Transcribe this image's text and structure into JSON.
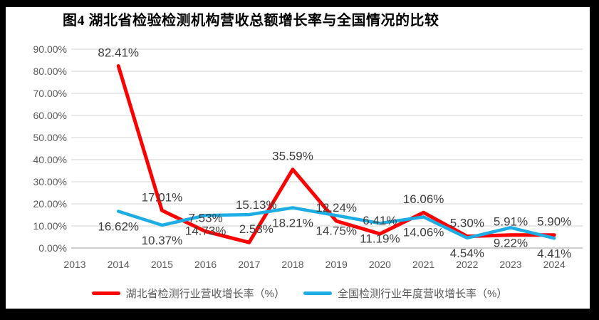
{
  "title": "图4 湖北省检验检测机构营收总额增长率与全国情况的比较",
  "chart_data": {
    "type": "line",
    "title": "图4 湖北省检验检测机构营收总额增长率与全国情况的比较",
    "categories": [
      "2013",
      "2014",
      "2015",
      "2016",
      "2017",
      "2018",
      "2019",
      "2020",
      "2021",
      "2022",
      "2023",
      "2024"
    ],
    "series": [
      {
        "name": "湖北省检测行业营收增长率（%）",
        "color": "#FF0000",
        "values": [
          null,
          82.41,
          17.01,
          7.53,
          2.53,
          35.59,
          12.24,
          6.41,
          16.06,
          5.3,
          5.91,
          5.9
        ],
        "labels": [
          "",
          "82.41%",
          "17.01%",
          "7.53%",
          "2.53%",
          "35.59%",
          "12.24%",
          "6.41%",
          "16.06%",
          "5.30%",
          "5.91%",
          "5.90%"
        ],
        "label_position": "above"
      },
      {
        "name": "全国检测行业年度营收增长率（%）",
        "color": "#1CADE4",
        "values": [
          null,
          16.62,
          10.37,
          14.73,
          15.13,
          18.21,
          14.75,
          11.19,
          14.06,
          4.54,
          9.22,
          4.41
        ],
        "labels": [
          "",
          "16.62%",
          "10.37%",
          "14.73%",
          "15.13%",
          "18.21%",
          "14.75%",
          "11.19%",
          "14.06%",
          "4.54%",
          "9.22%",
          "4.41%"
        ],
        "label_position": "below",
        "label_position_overrides": {
          "4": "above"
        }
      }
    ],
    "ylim": [
      0,
      90
    ],
    "ytick_step": 10,
    "ytick_labels": [
      "0.00%",
      "10.00%",
      "20.00%",
      "30.00%",
      "40.00%",
      "50.00%",
      "60.00%",
      "70.00%",
      "80.00%",
      "90.00%"
    ],
    "grid": true,
    "legend_position": "bottom",
    "style": {
      "gridline_color": "#D9D9D9",
      "axis_line_color": "#BFBFBF",
      "axis_text_color": "#595959",
      "data_label_color": "#404040"
    }
  }
}
